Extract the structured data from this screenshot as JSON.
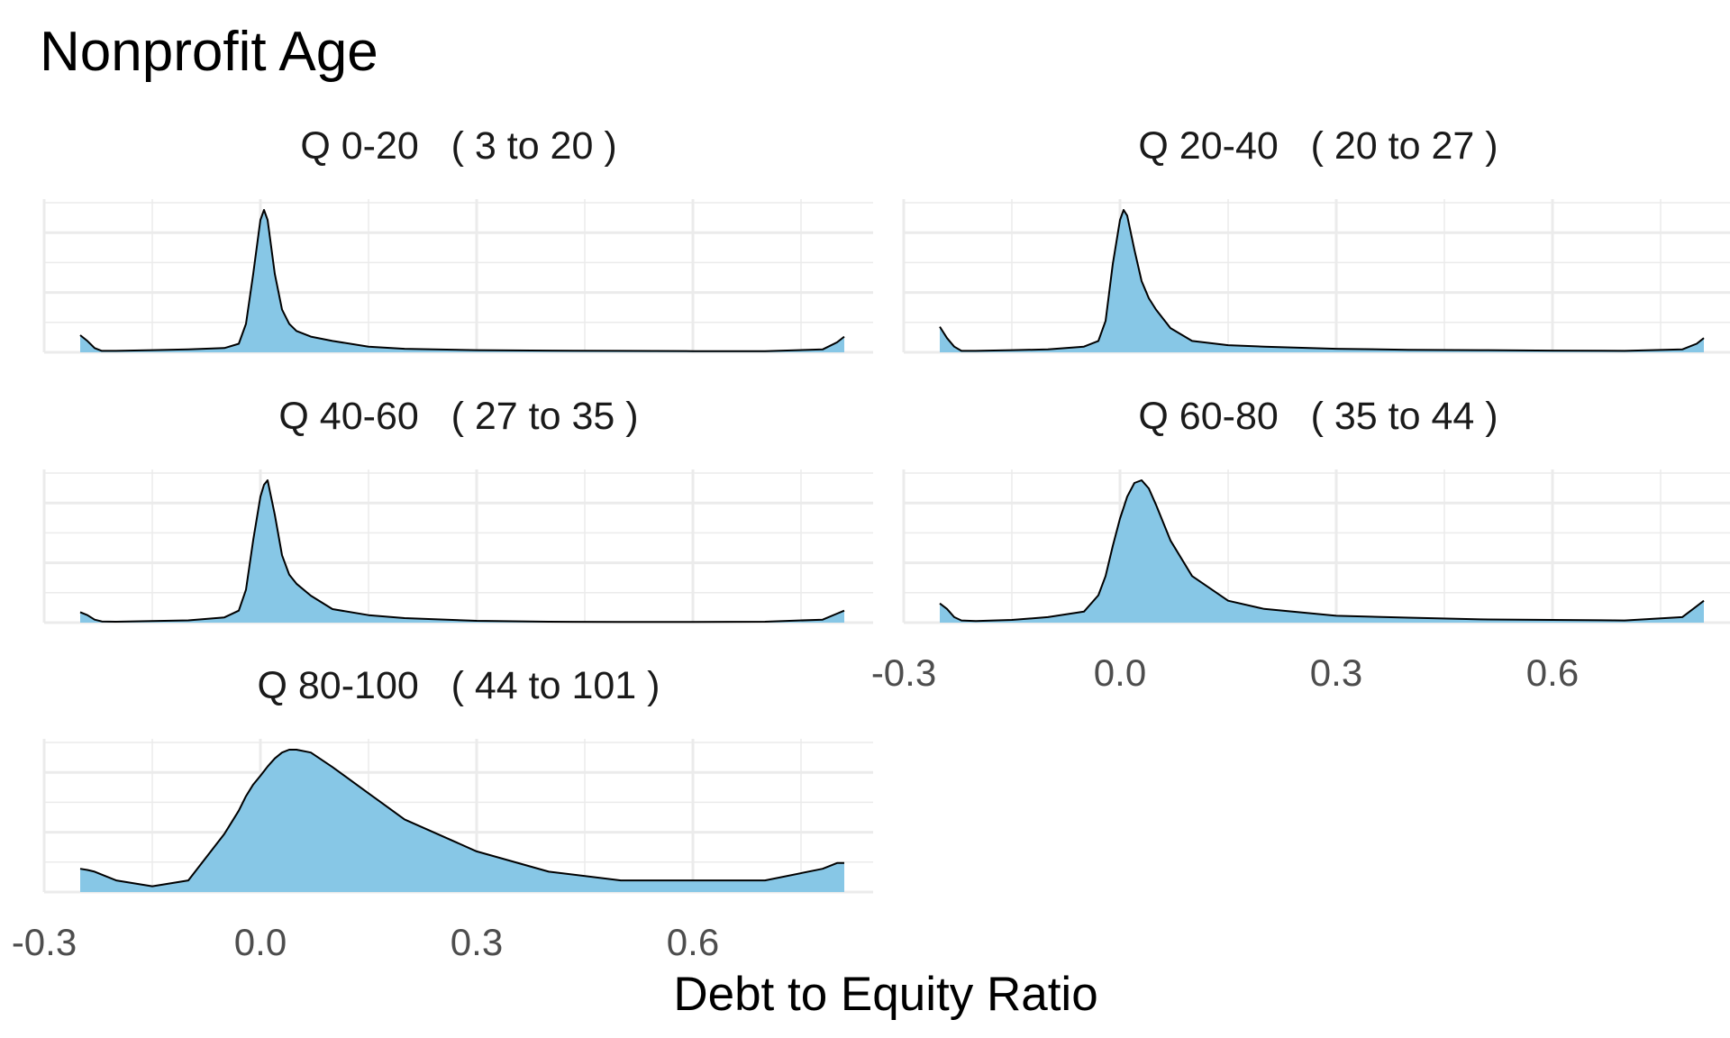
{
  "chart_data": {
    "type": "area",
    "title": "Nonprofit Age",
    "xlabel": "Debt to Equity Ratio",
    "ylabel": "",
    "xlim": [
      -0.3,
      0.85
    ],
    "x_ticks": [
      "-0.3",
      "0.0",
      "0.3",
      "0.6"
    ],
    "x_tick_values": [
      -0.3,
      0.0,
      0.3,
      0.6
    ],
    "grid": true,
    "fill_color": "#87c7e6",
    "outline_color": "#000000",
    "y_scale": "free (relative density)",
    "x": [
      -0.25,
      -0.24,
      -0.23,
      -0.22,
      -0.2,
      -0.15,
      -0.1,
      -0.05,
      -0.03,
      -0.02,
      -0.01,
      0.0,
      0.005,
      0.01,
      0.02,
      0.03,
      0.04,
      0.05,
      0.07,
      0.1,
      0.15,
      0.2,
      0.3,
      0.4,
      0.5,
      0.6,
      0.7,
      0.78,
      0.8,
      0.81
    ],
    "panels": [
      {
        "label": "Q 0-20   ( 3 to 20 )",
        "values": [
          0.12,
          0.08,
          0.03,
          0.01,
          0.01,
          0.015,
          0.02,
          0.03,
          0.06,
          0.2,
          0.55,
          0.93,
          1.0,
          0.93,
          0.55,
          0.3,
          0.2,
          0.15,
          0.11,
          0.08,
          0.04,
          0.025,
          0.015,
          0.012,
          0.01,
          0.008,
          0.008,
          0.02,
          0.07,
          0.11
        ]
      },
      {
        "label": "Q 20-40   ( 20 to 27 )",
        "values": [
          0.18,
          0.1,
          0.04,
          0.01,
          0.01,
          0.015,
          0.02,
          0.04,
          0.08,
          0.22,
          0.62,
          0.93,
          1.0,
          0.96,
          0.72,
          0.5,
          0.38,
          0.3,
          0.17,
          0.08,
          0.05,
          0.04,
          0.025,
          0.018,
          0.015,
          0.012,
          0.01,
          0.02,
          0.06,
          0.1
        ]
      },
      {
        "label": "Q 40-60   ( 27 to 35 )",
        "values": [
          0.07,
          0.05,
          0.02,
          0.008,
          0.006,
          0.01,
          0.015,
          0.035,
          0.08,
          0.22,
          0.55,
          0.84,
          0.92,
          0.95,
          0.72,
          0.45,
          0.32,
          0.26,
          0.18,
          0.09,
          0.05,
          0.03,
          0.012,
          0.006,
          0.005,
          0.005,
          0.006,
          0.02,
          0.06,
          0.08
        ]
      },
      {
        "label": "Q 60-80   ( 35 to 44 )",
        "values": [
          0.07,
          0.05,
          0.02,
          0.008,
          0.006,
          0.01,
          0.02,
          0.04,
          0.1,
          0.17,
          0.28,
          0.38,
          0.42,
          0.46,
          0.51,
          0.52,
          0.49,
          0.43,
          0.3,
          0.17,
          0.08,
          0.05,
          0.025,
          0.018,
          0.012,
          0.01,
          0.008,
          0.02,
          0.06,
          0.08
        ]
      },
      {
        "label": "Q 80-100   ( 44 to 101 )",
        "values": [
          0.04,
          0.038,
          0.035,
          0.03,
          0.02,
          0.01,
          0.02,
          0.1,
          0.14,
          0.165,
          0.185,
          0.2,
          0.208,
          0.216,
          0.23,
          0.24,
          0.245,
          0.245,
          0.24,
          0.215,
          0.17,
          0.125,
          0.07,
          0.035,
          0.02,
          0.02,
          0.02,
          0.04,
          0.05,
          0.05
        ]
      }
    ]
  }
}
